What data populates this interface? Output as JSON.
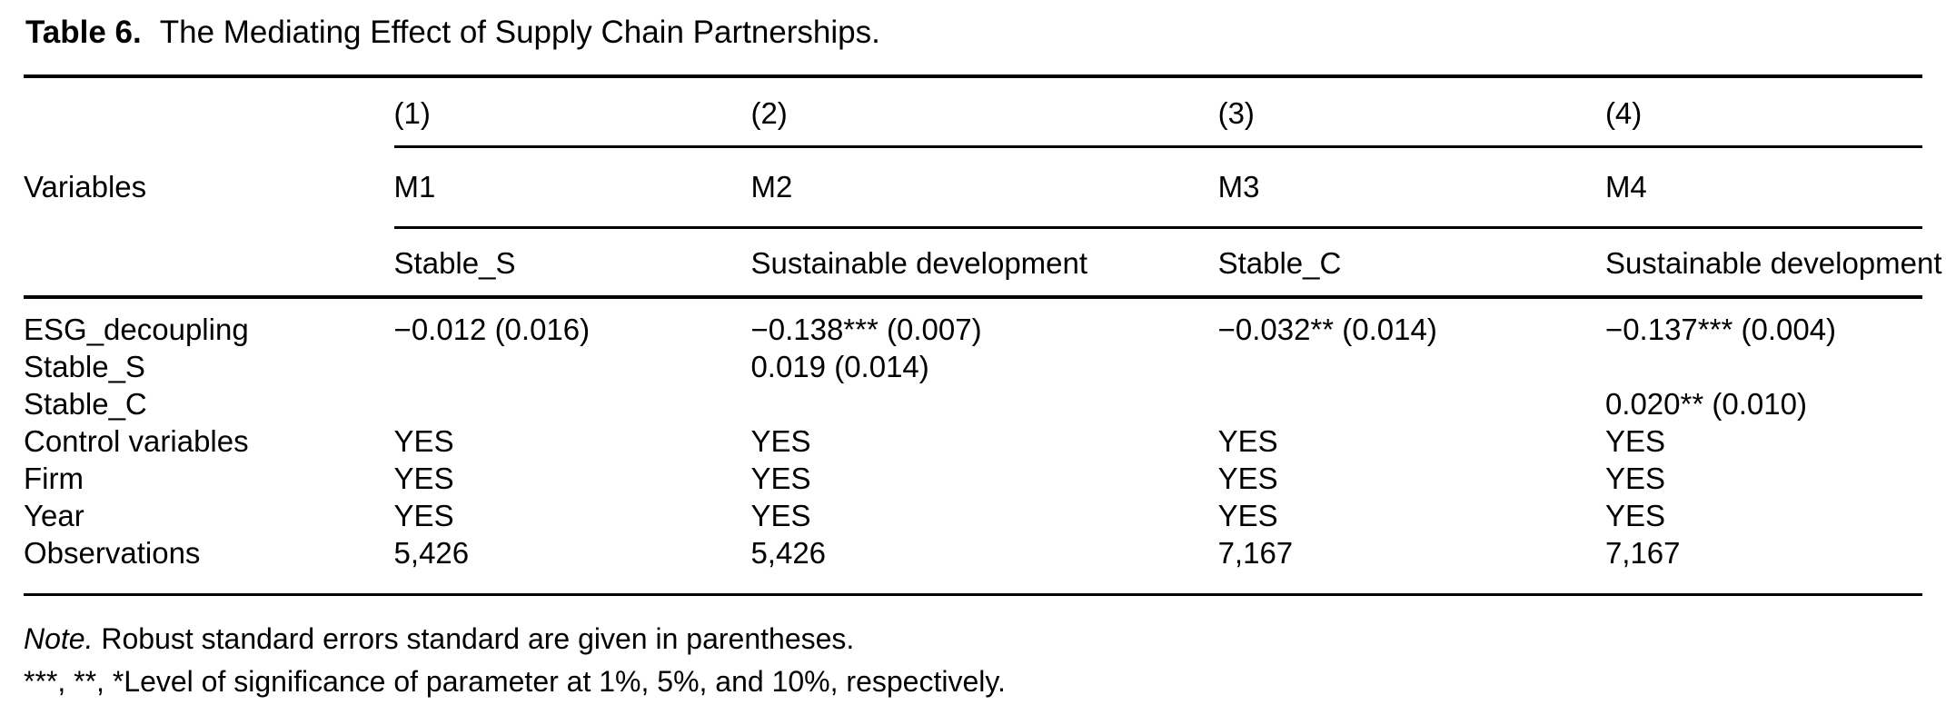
{
  "caption": {
    "label": "Table 6.",
    "text": "The Mediating Effect of Supply Chain Partnerships."
  },
  "table": {
    "corner_header": "Variables",
    "columns": [
      {
        "number": "(1)",
        "model": "M1",
        "dependent_variable": "Stable_S"
      },
      {
        "number": "(2)",
        "model": "M2",
        "dependent_variable": "Sustainable development"
      },
      {
        "number": "(3)",
        "model": "M3",
        "dependent_variable": "Stable_C"
      },
      {
        "number": "(4)",
        "model": "M4",
        "dependent_variable": "Sustainable development"
      }
    ],
    "rows": [
      {
        "label": "ESG_decoupling",
        "values": [
          "−0.012 (0.016)",
          "−0.138*** (0.007)",
          "−0.032** (0.014)",
          "−0.137*** (0.004)"
        ]
      },
      {
        "label": "Stable_S",
        "values": [
          "",
          "0.019 (0.014)",
          "",
          ""
        ]
      },
      {
        "label": "Stable_C",
        "values": [
          "",
          "",
          "",
          "0.020** (0.010)"
        ]
      },
      {
        "label": "Control variables",
        "values": [
          "YES",
          "YES",
          "YES",
          "YES"
        ]
      },
      {
        "label": "Firm",
        "values": [
          "YES",
          "YES",
          "YES",
          "YES"
        ]
      },
      {
        "label": "Year",
        "values": [
          "YES",
          "YES",
          "YES",
          "YES"
        ]
      },
      {
        "label": "Observations",
        "values": [
          "5,426",
          "5,426",
          "7,167",
          "7,167"
        ]
      }
    ]
  },
  "notes": {
    "note_label": "Note.",
    "note_text": " Robust standard errors standard are given in parentheses.",
    "significance": "***, **, *Level of significance of parameter at 1%, 5%, and 10%, respectively."
  }
}
